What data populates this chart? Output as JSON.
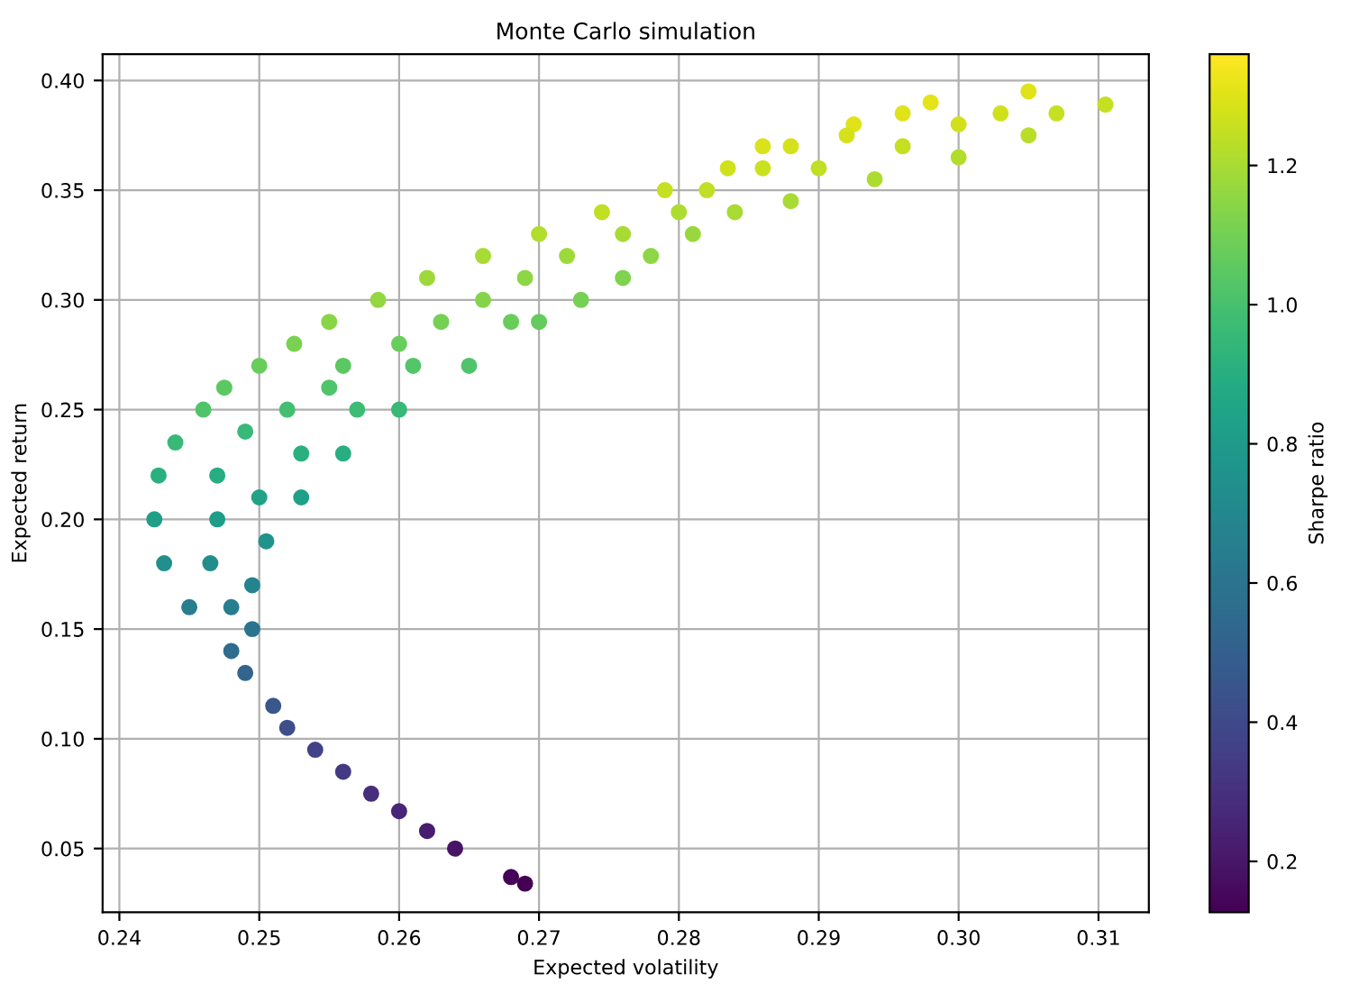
{
  "chart_data": {
    "type": "scatter",
    "title": "Monte Carlo simulation",
    "xlabel": "Expected volatility",
    "ylabel": "Expected return",
    "clabel": "Sharpe ratio",
    "grid": true,
    "marker": "circle",
    "xlim": [
      0.2388,
      0.3136
    ],
    "ylim": [
      0.021,
      0.412
    ],
    "clim": [
      0.127,
      1.36
    ],
    "xticks": [
      {
        "value": 0.24,
        "label": "0.24"
      },
      {
        "value": 0.25,
        "label": "0.25"
      },
      {
        "value": 0.26,
        "label": "0.26"
      },
      {
        "value": 0.27,
        "label": "0.27"
      },
      {
        "value": 0.28,
        "label": "0.28"
      },
      {
        "value": 0.29,
        "label": "0.29"
      },
      {
        "value": 0.3,
        "label": "0.30"
      },
      {
        "value": 0.31,
        "label": "0.31"
      }
    ],
    "yticks": [
      {
        "value": 0.05,
        "label": "0.05"
      },
      {
        "value": 0.1,
        "label": "0.10"
      },
      {
        "value": 0.15,
        "label": "0.15"
      },
      {
        "value": 0.2,
        "label": "0.20"
      },
      {
        "value": 0.25,
        "label": "0.25"
      },
      {
        "value": 0.3,
        "label": "0.30"
      },
      {
        "value": 0.35,
        "label": "0.35"
      },
      {
        "value": 0.4,
        "label": "0.40"
      }
    ],
    "cticks": [
      {
        "value": 0.2,
        "label": "0.2"
      },
      {
        "value": 0.4,
        "label": "0.4"
      },
      {
        "value": 0.6,
        "label": "0.6"
      },
      {
        "value": 0.8,
        "label": "0.8"
      },
      {
        "value": 1.0,
        "label": "1.0"
      },
      {
        "value": 1.2,
        "label": "1.2"
      }
    ],
    "x": [
      0.2425,
      0.2428,
      0.2432,
      0.244,
      0.245,
      0.246,
      0.2475,
      0.248,
      0.25,
      0.2525,
      0.255,
      0.2585,
      0.262,
      0.266,
      0.27,
      0.2745,
      0.279,
      0.2835,
      0.288,
      0.2925,
      0.298,
      0.305,
      0.3105,
      0.2495,
      0.2495,
      0.2505,
      0.253,
      0.256,
      0.26,
      0.265,
      0.27,
      0.276,
      0.281,
      0.288,
      0.294,
      0.3,
      0.305,
      0.249,
      0.251,
      0.252,
      0.254,
      0.256,
      0.258,
      0.26,
      0.262,
      0.264,
      0.268,
      0.269,
      0.2465,
      0.247,
      0.247,
      0.248,
      0.249,
      0.25,
      0.252,
      0.253,
      0.255,
      0.256,
      0.257,
      0.26,
      0.261,
      0.263,
      0.266,
      0.268,
      0.269,
      0.272,
      0.273,
      0.276,
      0.278,
      0.28,
      0.282,
      0.284,
      0.286,
      0.286,
      0.29,
      0.292,
      0.296,
      0.296,
      0.3,
      0.303,
      0.307
    ],
    "values": [
      0.2,
      0.22,
      0.18,
      0.235,
      0.16,
      0.25,
      0.26,
      0.14,
      0.27,
      0.28,
      0.29,
      0.3,
      0.31,
      0.32,
      0.33,
      0.34,
      0.35,
      0.36,
      0.37,
      0.38,
      0.39,
      0.395,
      0.389,
      0.15,
      0.17,
      0.19,
      0.21,
      0.23,
      0.25,
      0.27,
      0.29,
      0.31,
      0.33,
      0.345,
      0.355,
      0.365,
      0.375,
      0.13,
      0.115,
      0.105,
      0.095,
      0.085,
      0.075,
      0.067,
      0.058,
      0.05,
      0.037,
      0.034,
      0.18,
      0.2,
      0.22,
      0.16,
      0.24,
      0.21,
      0.25,
      0.23,
      0.26,
      0.27,
      0.25,
      0.28,
      0.27,
      0.29,
      0.3,
      0.29,
      0.31,
      0.32,
      0.3,
      0.33,
      0.32,
      0.34,
      0.35,
      0.34,
      0.37,
      0.36,
      0.36,
      0.375,
      0.37,
      0.385,
      0.38,
      0.385,
      0.385
    ],
    "cvalues": [
      0.82,
      0.91,
      0.74,
      0.96,
      0.65,
      1.02,
      1.05,
      0.56,
      1.08,
      1.11,
      1.14,
      1.16,
      1.18,
      1.2,
      1.22,
      1.24,
      1.25,
      1.27,
      1.28,
      1.3,
      1.31,
      1.3,
      1.25,
      0.6,
      0.68,
      0.76,
      0.83,
      0.9,
      0.96,
      1.02,
      1.07,
      1.12,
      1.17,
      1.2,
      1.21,
      1.22,
      1.23,
      0.52,
      0.46,
      0.42,
      0.37,
      0.33,
      0.29,
      0.26,
      0.22,
      0.19,
      0.14,
      0.13,
      0.73,
      0.81,
      0.89,
      0.65,
      0.96,
      0.84,
      0.99,
      0.91,
      1.02,
      1.05,
      0.97,
      1.08,
      1.03,
      1.1,
      1.13,
      1.08,
      1.15,
      1.18,
      1.1,
      1.2,
      1.15,
      1.21,
      1.24,
      1.2,
      1.29,
      1.26,
      1.24,
      1.28,
      1.25,
      1.3,
      1.27,
      1.27,
      1.25
    ]
  }
}
